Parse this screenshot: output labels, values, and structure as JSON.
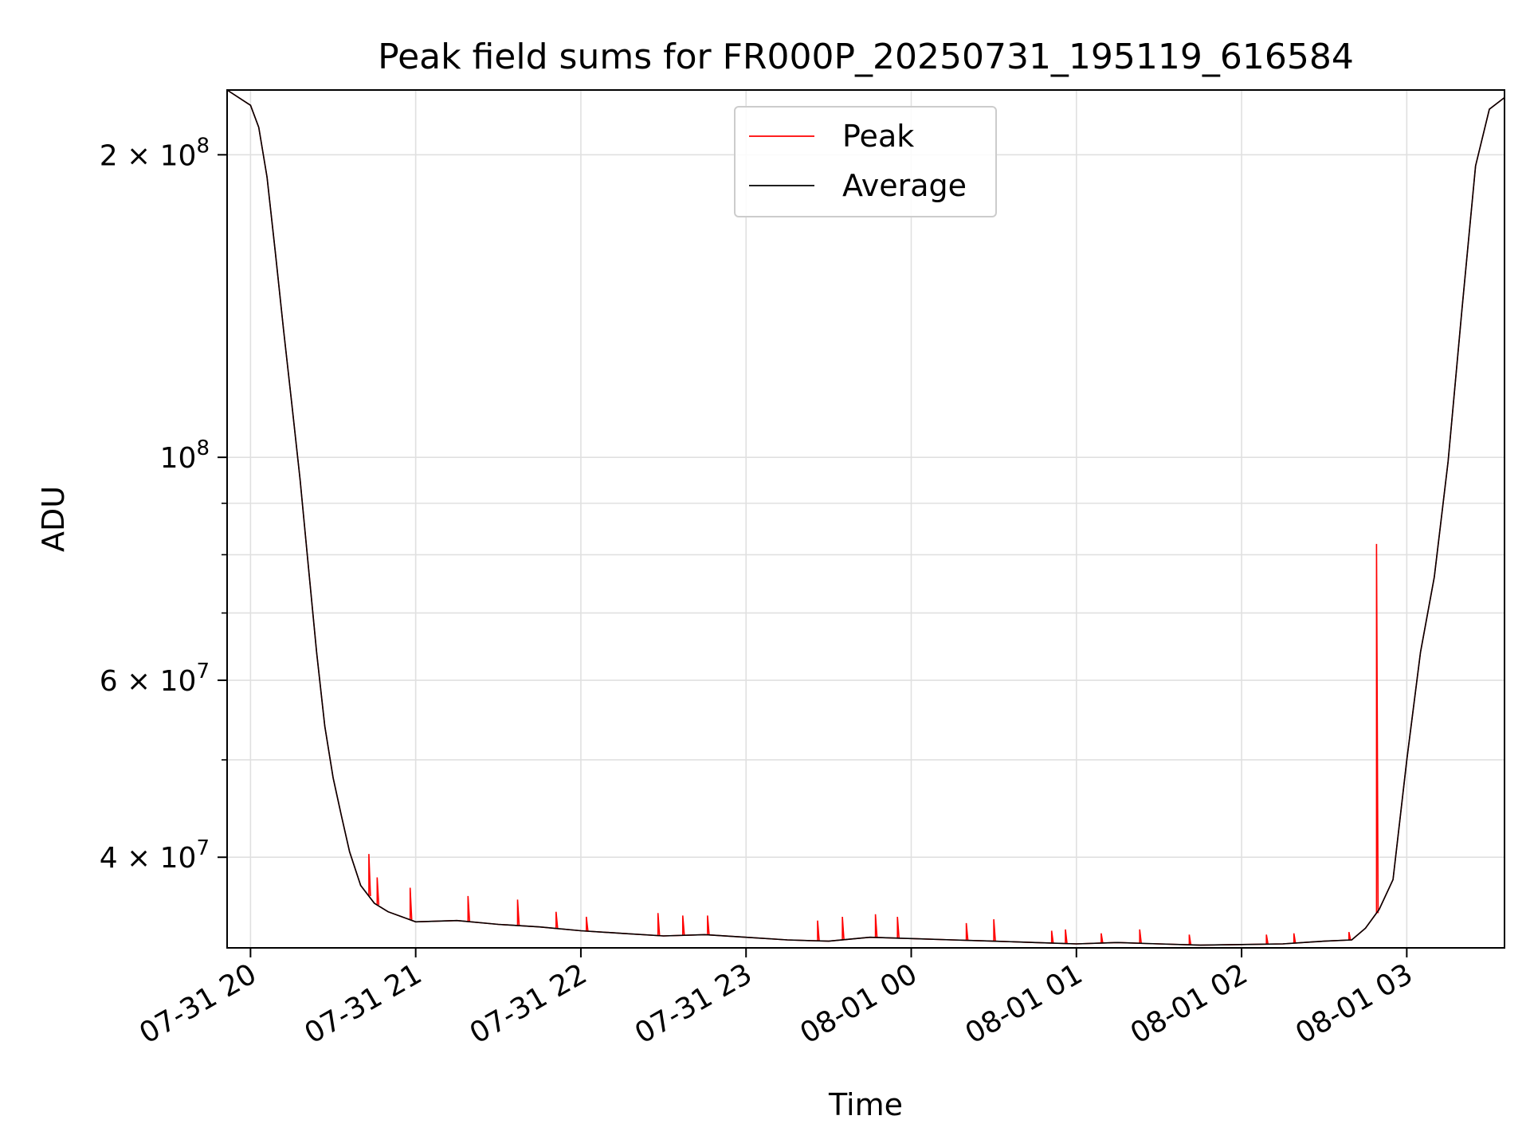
{
  "chart_data": {
    "type": "line",
    "title": "Peak field sums for FR000P_20250731_195119_616584",
    "xlabel": "Time",
    "ylabel": "ADU",
    "y_scale": "log",
    "ylim": [
      32500000,
      232000000
    ],
    "xlim": [
      "2025-07-31 19:51:30",
      "2025-08-01 03:35:30"
    ],
    "grid": true,
    "legend_position": "upper center",
    "x_ticks": [
      {
        "value": "2025-07-31 20:00",
        "label": "07-31 20"
      },
      {
        "value": "2025-07-31 21:00",
        "label": "07-31 21"
      },
      {
        "value": "2025-07-31 22:00",
        "label": "07-31 22"
      },
      {
        "value": "2025-07-31 23:00",
        "label": "07-31 23"
      },
      {
        "value": "2025-08-01 00:00",
        "label": "08-01 00"
      },
      {
        "value": "2025-08-01 01:00",
        "label": "08-01 01"
      },
      {
        "value": "2025-08-01 02:00",
        "label": "08-01 02"
      },
      {
        "value": "2025-08-01 03:00",
        "label": "08-01 03"
      }
    ],
    "y_ticks": [
      {
        "value": 40000000,
        "mantissa": "4",
        "exponent": "7"
      },
      {
        "value": 60000000,
        "mantissa": "6",
        "exponent": "7"
      },
      {
        "value": 100000000,
        "mantissa": "",
        "exponent": "8"
      },
      {
        "value": 200000000,
        "mantissa": "2",
        "exponent": "8"
      }
    ],
    "y_minor_ticks": [
      50000000,
      70000000,
      80000000,
      90000000
    ],
    "series": [
      {
        "name": "Average",
        "color": "#000000",
        "x": [
          "2025-07-31 19:51:30",
          "2025-07-31 20:00",
          "2025-07-31 20:03",
          "2025-07-31 20:06",
          "2025-07-31 20:09",
          "2025-07-31 20:12",
          "2025-07-31 20:15",
          "2025-07-31 20:18",
          "2025-07-31 20:21",
          "2025-07-31 20:24",
          "2025-07-31 20:27",
          "2025-07-31 20:30",
          "2025-07-31 20:33",
          "2025-07-31 20:36",
          "2025-07-31 20:40",
          "2025-07-31 20:45",
          "2025-07-31 20:50",
          "2025-07-31 20:55",
          "2025-07-31 21:00",
          "2025-07-31 21:15",
          "2025-07-31 21:30",
          "2025-07-31 21:45",
          "2025-07-31 22:00",
          "2025-07-31 22:15",
          "2025-07-31 22:30",
          "2025-07-31 22:45",
          "2025-07-31 23:00",
          "2025-07-31 23:15",
          "2025-07-31 23:30",
          "2025-07-31 23:45",
          "2025-08-01 00:00",
          "2025-08-01 00:15",
          "2025-08-01 00:30",
          "2025-08-01 00:45",
          "2025-08-01 01:00",
          "2025-08-01 01:15",
          "2025-08-01 01:30",
          "2025-08-01 01:45",
          "2025-08-01 02:00",
          "2025-08-01 02:15",
          "2025-08-01 02:30",
          "2025-08-01 02:40",
          "2025-08-01 02:45",
          "2025-08-01 02:50",
          "2025-08-01 02:55",
          "2025-08-01 03:00",
          "2025-08-01 03:05",
          "2025-08-01 03:10",
          "2025-08-01 03:15",
          "2025-08-01 03:20",
          "2025-08-01 03:25",
          "2025-08-01 03:30",
          "2025-08-01 03:35:30"
        ],
        "y": [
          232000000,
          224000000,
          213000000,
          190000000,
          160000000,
          134000000,
          113000000,
          95000000,
          78000000,
          64000000,
          54000000,
          48000000,
          44000000,
          40500000,
          37500000,
          36000000,
          35300000,
          34900000,
          34500000,
          34600000,
          34300000,
          34100000,
          33800000,
          33600000,
          33400000,
          33500000,
          33300000,
          33100000,
          33000000,
          33300000,
          33200000,
          33100000,
          33000000,
          32900000,
          32800000,
          32900000,
          32800000,
          32700000,
          32750000,
          32800000,
          33000000,
          33100000,
          34000000,
          35500000,
          38000000,
          50000000,
          64000000,
          76000000,
          99000000,
          140000000,
          195000000,
          222000000,
          228000000
        ]
      },
      {
        "name": "Peak",
        "color": "#ff0000",
        "spikes": [
          {
            "x": "2025-07-31 20:43",
            "y": 40300000
          },
          {
            "x": "2025-07-31 20:46",
            "y": 38200000
          },
          {
            "x": "2025-07-31 20:58",
            "y": 37300000
          },
          {
            "x": "2025-07-31 21:19",
            "y": 36600000
          },
          {
            "x": "2025-07-31 21:37",
            "y": 36300000
          },
          {
            "x": "2025-07-31 21:51",
            "y": 35300000
          },
          {
            "x": "2025-07-31 22:02",
            "y": 34900000
          },
          {
            "x": "2025-07-31 22:28",
            "y": 35200000
          },
          {
            "x": "2025-07-31 22:37",
            "y": 35000000
          },
          {
            "x": "2025-07-31 22:46",
            "y": 35000000
          },
          {
            "x": "2025-07-31 23:26",
            "y": 34600000
          },
          {
            "x": "2025-07-31 23:35",
            "y": 34900000
          },
          {
            "x": "2025-07-31 23:47",
            "y": 35100000
          },
          {
            "x": "2025-07-31 23:55",
            "y": 34900000
          },
          {
            "x": "2025-08-01 00:20",
            "y": 34400000
          },
          {
            "x": "2025-08-01 00:30",
            "y": 34700000
          },
          {
            "x": "2025-08-01 00:51",
            "y": 33800000
          },
          {
            "x": "2025-08-01 00:56",
            "y": 33900000
          },
          {
            "x": "2025-08-01 01:09",
            "y": 33600000
          },
          {
            "x": "2025-08-01 01:23",
            "y": 33900000
          },
          {
            "x": "2025-08-01 01:41",
            "y": 33500000
          },
          {
            "x": "2025-08-01 02:09",
            "y": 33500000
          },
          {
            "x": "2025-08-01 02:19",
            "y": 33600000
          },
          {
            "x": "2025-08-01 02:39",
            "y": 33700000
          },
          {
            "x": "2025-08-01 02:49",
            "y": 82000000
          }
        ]
      }
    ]
  }
}
